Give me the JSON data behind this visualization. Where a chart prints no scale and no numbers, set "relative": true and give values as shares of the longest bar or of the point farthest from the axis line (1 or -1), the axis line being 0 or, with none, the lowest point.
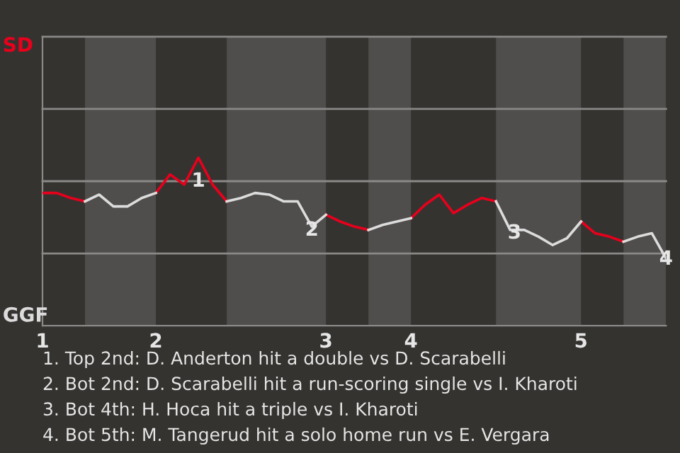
{
  "chart_data": {
    "type": "line",
    "categories": [
      "1",
      null,
      null,
      null,
      null,
      null,
      null,
      null,
      "2",
      null,
      null,
      null,
      null,
      null,
      null,
      null,
      null,
      null,
      null,
      null,
      "3",
      null,
      null,
      null,
      null,
      null,
      "4",
      null,
      null,
      null,
      null,
      null,
      null,
      null,
      null,
      null,
      null,
      null,
      "5",
      null,
      null,
      null,
      null,
      null,
      null
    ],
    "relative": true,
    "series": [
      {
        "color": "#e8001c",
        "values": [
          0.79,
          0.79,
          0.76,
          0.74,
          null,
          null,
          null,
          null,
          0.79,
          0.9,
          0.84,
          1,
          0.84,
          0.74,
          null,
          null,
          null,
          null,
          null,
          null,
          0.66,
          0.62,
          0.59,
          0.57,
          null,
          null,
          0.64,
          0.72,
          0.78,
          0.67,
          0.72,
          0.76,
          0.74,
          null,
          null,
          null,
          null,
          null,
          0.62,
          0.55,
          0.53,
          0.5,
          null,
          null,
          null
        ]
      },
      {
        "color": "#dcdcdc",
        "values": [
          null,
          null,
          null,
          0.74,
          0.78,
          0.71,
          0.71,
          0.76,
          0.79,
          null,
          null,
          null,
          null,
          0.74,
          0.76,
          0.79,
          0.78,
          0.74,
          0.74,
          0.59,
          0.66,
          null,
          null,
          0.57,
          0.6,
          0.62,
          0.64,
          null,
          null,
          null,
          null,
          null,
          0.74,
          0.57,
          0.57,
          0.53,
          0.48,
          0.52,
          0.62,
          null,
          null,
          0.5,
          0.53,
          0.55,
          0.4
        ]
      }
    ],
    "ref_lines": [
      {
        "axis": "y",
        "value": 0.43,
        "color": "#8a8987"
      },
      {
        "axis": "y",
        "value": 0.86,
        "color": "#8a8987"
      },
      {
        "axis": "y",
        "value": 1.29,
        "color": "#8a8987"
      },
      {
        "axis": "y",
        "value": 1.72,
        "color": "#8a8987"
      }
    ],
    "annotations": [
      "SD",
      "GGF",
      "1",
      "2",
      "3",
      "4",
      "1. Top 2nd: D. Anderton hit a double vs D. Scarabelli",
      "2. Bot 2nd: D. Scarabelli hit a run-scoring single vs I. Kharoti",
      "3. Bot 4th: H. Hoca hit a triple vs I. Kharoti",
      "4. Bot 5th: M. Tangerud hit a solo home run vs E. Vergara"
    ]
  }
}
